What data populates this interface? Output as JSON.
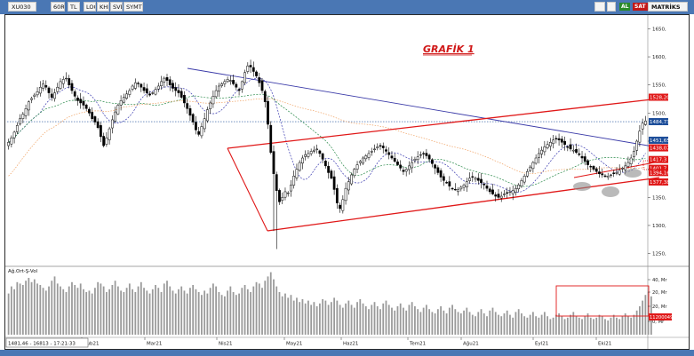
{
  "toolbar": {
    "symbol": "XU030",
    "period": "60R",
    "currency": "TL",
    "options": [
      "LOG",
      "KHR",
      "SVD",
      "SYMTMP"
    ],
    "flags": {
      "buy": "AL",
      "sell": "SAT"
    },
    "right_label": "MATRİKS"
  },
  "colors": {
    "up_candle": "#ffffff",
    "down_candle": "#000000",
    "channel": "#e01818",
    "trendline": "#3a3aa8",
    "price_label": "#e01818",
    "current_label": "#1d4e9a"
  },
  "chart_data": [
    {
      "type": "candlestick",
      "title": "GRAFİK 1",
      "x_labels": [
        "Şub21",
        "Mar21",
        "Nis21",
        "May21",
        "Haz21",
        "Tem21",
        "Ağu21",
        "Eyl21",
        "Eki21"
      ],
      "y_ticks": [
        "1650,",
        "1600,",
        "1550,",
        "1500,",
        "1450,",
        "1400,",
        "1350,",
        "1300,",
        "1250,"
      ],
      "ylim": [
        1232,
        1668
      ],
      "price_labels": [
        {
          "text": "1528,20",
          "value": 1528.2,
          "kind": "channel"
        },
        {
          "text": "1484,73",
          "value": 1484.73,
          "kind": "current"
        },
        {
          "text": "1451,65",
          "value": 1451.65,
          "kind": "trendline"
        },
        {
          "text": "1438,07",
          "value": 1438.07,
          "kind": "channel"
        },
        {
          "text": "1417,3",
          "value": 1417.3,
          "kind": "channel"
        },
        {
          "text": "1401,7",
          "value": 1401.7,
          "kind": "channel"
        },
        {
          "text": "1394,16",
          "value": 1394.16,
          "kind": "channel"
        },
        {
          "text": "1377,38",
          "value": 1377.38,
          "kind": "channel"
        }
      ],
      "series": [
        {
          "name": "",
          "kind": "price",
          "values": [
            1448,
            1456,
            1466,
            1478,
            1490,
            1498,
            1508,
            1520,
            1526,
            1532,
            1538,
            1546,
            1552,
            1546,
            1536,
            1528,
            1536,
            1546,
            1556,
            1560,
            1562,
            1550,
            1540,
            1530,
            1522,
            1518,
            1514,
            1508,
            1500,
            1490,
            1484,
            1474,
            1458,
            1442,
            1456,
            1472,
            1488,
            1502,
            1514,
            1522,
            1528,
            1534,
            1540,
            1548,
            1554,
            1552,
            1546,
            1540,
            1536,
            1532,
            1536,
            1542,
            1548,
            1556,
            1562,
            1558,
            1550,
            1544,
            1540,
            1536,
            1528,
            1518,
            1508,
            1496,
            1484,
            1470,
            1462,
            1476,
            1490,
            1506,
            1518,
            1530,
            1540,
            1548,
            1552,
            1556,
            1560,
            1558,
            1552,
            1546,
            1540,
            1556,
            1572,
            1584,
            1582,
            1574,
            1566,
            1554,
            1540,
            1520,
            1480,
            1430,
            1392,
            1362,
            1342,
            1350,
            1360,
            1358,
            1372,
            1388,
            1400,
            1412,
            1420,
            1426,
            1428,
            1432,
            1434,
            1436,
            1428,
            1418,
            1406,
            1394,
            1384,
            1364,
            1340,
            1330,
            1346,
            1366,
            1378,
            1390,
            1400,
            1408,
            1414,
            1420,
            1424,
            1428,
            1432,
            1436,
            1440,
            1442,
            1438,
            1432,
            1426,
            1420,
            1414,
            1408,
            1402,
            1396,
            1400,
            1406,
            1412,
            1418,
            1422,
            1426,
            1428,
            1424,
            1418,
            1410,
            1402,
            1394,
            1386,
            1380,
            1376,
            1370,
            1366,
            1364,
            1364,
            1368,
            1372,
            1378,
            1384,
            1386,
            1384,
            1380,
            1376,
            1372,
            1366,
            1360,
            1356,
            1352,
            1350,
            1352,
            1356,
            1358,
            1360,
            1362,
            1366,
            1372,
            1380,
            1388,
            1396,
            1404,
            1412,
            1420,
            1428,
            1434,
            1440,
            1444,
            1448,
            1452,
            1454,
            1452,
            1448,
            1444,
            1440,
            1436,
            1434,
            1430,
            1426,
            1420,
            1414,
            1408,
            1404,
            1400,
            1396,
            1392,
            1390,
            1388,
            1388,
            1390,
            1392,
            1394,
            1398,
            1402,
            1406,
            1412,
            1420,
            1432,
            1450,
            1468,
            1482,
            1486
          ]
        },
        {
          "name": "",
          "kind": "volume",
          "values": [
            29,
            34,
            32,
            37,
            36,
            35,
            38,
            40,
            37,
            39,
            36,
            35,
            33,
            31,
            34,
            38,
            41,
            36,
            34,
            32,
            30,
            34,
            37,
            35,
            33,
            36,
            32,
            30,
            31,
            29,
            33,
            37,
            36,
            34,
            30,
            32,
            35,
            38,
            34,
            31,
            30,
            33,
            36,
            32,
            30,
            34,
            37,
            33,
            31,
            29,
            32,
            35,
            33,
            30,
            36,
            38,
            34,
            31,
            29,
            32,
            34,
            31,
            29,
            33,
            35,
            32,
            30,
            28,
            31,
            29,
            33,
            36,
            34,
            30,
            28,
            27,
            31,
            34,
            30,
            28,
            29,
            33,
            35,
            32,
            30,
            34,
            37,
            36,
            33,
            38,
            41,
            44,
            39,
            34,
            30,
            27,
            29,
            26,
            28,
            24,
            26,
            23,
            25,
            22,
            24,
            21,
            23,
            20,
            22,
            25,
            24,
            21,
            23,
            26,
            24,
            21,
            19,
            22,
            24,
            21,
            19,
            23,
            25,
            22,
            20,
            18,
            21,
            23,
            20,
            18,
            22,
            24,
            21,
            19,
            17,
            20,
            22,
            19,
            17,
            21,
            23,
            20,
            18,
            16,
            19,
            21,
            18,
            16,
            15,
            18,
            20,
            17,
            15,
            19,
            21,
            18,
            16,
            15,
            17,
            19,
            16,
            14,
            13,
            16,
            18,
            15,
            13,
            17,
            19,
            16,
            14,
            13,
            15,
            17,
            14,
            12,
            16,
            18,
            15,
            13,
            12,
            14,
            16,
            13,
            12,
            14,
            16,
            13,
            11,
            12,
            14,
            15,
            13,
            11,
            12,
            14,
            16,
            13,
            12,
            11,
            13,
            15,
            12,
            11,
            12,
            14,
            13,
            11,
            10,
            12,
            14,
            12,
            11,
            13,
            15,
            13,
            12,
            14,
            17,
            20,
            24,
            28,
            30,
            27
          ]
        }
      ]
    },
    {
      "type": "bar",
      "title": "Ağ.Ort-Ş-Vol",
      "y_ticks": [
        "40, Mr",
        "20, Mr",
        "20, Mr",
        "0, Mr"
      ],
      "last_value_label": "11200049"
    }
  ],
  "footer": {
    "date_readout": "1481,46 - 16813 - 17:21:33"
  }
}
